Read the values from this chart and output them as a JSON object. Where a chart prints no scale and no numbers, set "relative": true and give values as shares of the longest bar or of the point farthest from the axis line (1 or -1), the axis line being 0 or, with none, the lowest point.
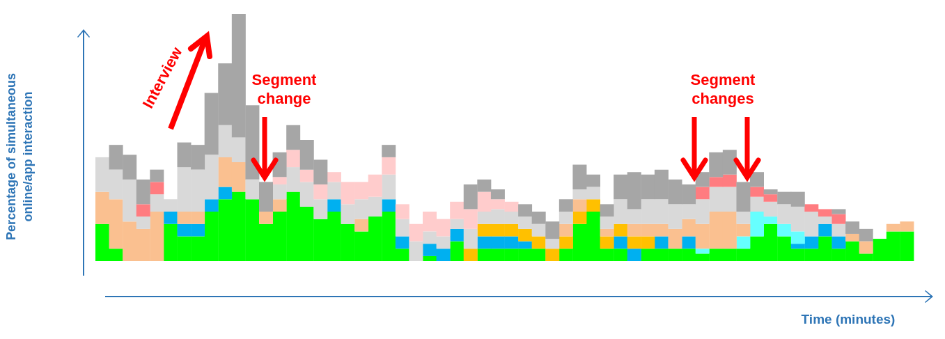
{
  "chart_data": {
    "type": "bar",
    "stacked": true,
    "relative": true,
    "grid": false,
    "legend": false,
    "xlabel": "Time (minutes)",
    "ylabel": "Percentage of simultaneous online/app interaction",
    "annotations": [
      "Interview",
      "Segment change",
      "Segment changes"
    ],
    "categories": [
      null,
      null,
      null,
      null,
      null,
      null,
      null,
      null,
      null,
      null,
      null,
      null,
      null,
      null,
      null,
      null,
      null,
      null,
      null,
      null,
      null,
      null,
      null,
      null,
      null,
      null,
      null,
      null,
      null,
      null,
      null,
      null,
      null,
      null,
      null,
      null,
      null,
      null,
      null,
      null,
      null,
      null,
      null,
      null,
      null,
      null,
      null,
      null,
      null,
      null,
      null,
      null,
      null,
      null,
      null,
      null,
      null,
      null,
      null,
      null
    ],
    "series": [
      {
        "color": "#00ff00",
        "values": [
          0.15,
          0.05,
          0,
          0,
          0,
          0.15,
          0.1,
          0.1,
          0.2,
          0.25,
          0.28,
          0.25,
          0.15,
          0.2,
          0.28,
          0.22,
          0.17,
          0.2,
          0.15,
          0.12,
          0.18,
          0.2,
          0.05,
          0,
          0.02,
          0,
          0.08,
          0,
          0.05,
          0.05,
          0.05,
          0.05,
          0.05,
          0,
          0.05,
          0.15,
          0.2,
          0.05,
          0.05,
          0,
          0.05,
          0.05,
          0.05,
          0.05,
          0.03,
          0.05,
          0.05,
          0.05,
          0.1,
          0.15,
          0.1,
          0.05,
          0.05,
          0.1,
          0.05,
          0.08,
          0.03,
          0.09,
          0.12,
          0.12
        ]
      },
      {
        "color": "#00b0f0",
        "values": [
          0,
          0,
          0,
          0,
          0,
          0.05,
          0.05,
          0.05,
          0.05,
          0.05,
          0,
          0,
          0,
          0,
          0,
          0,
          0,
          0.05,
          0,
          0,
          0,
          0.05,
          0.05,
          0,
          0.05,
          0.05,
          0.05,
          0,
          0.05,
          0.05,
          0.05,
          0.03,
          0,
          0,
          0,
          0,
          0,
          0,
          0.05,
          0.05,
          0,
          0.05,
          0,
          0.05,
          0,
          0,
          0,
          0,
          0,
          0,
          0,
          0.02,
          0.05,
          0.05,
          0.05,
          0,
          0,
          0,
          0,
          0
        ]
      },
      {
        "color": "#66ffff",
        "values": [
          0,
          0,
          0,
          0,
          0,
          0,
          0,
          0,
          0,
          0,
          0,
          0,
          0,
          0,
          0,
          0,
          0,
          0,
          0,
          0,
          0,
          0,
          0,
          0,
          0,
          0,
          0,
          0,
          0,
          0,
          0,
          0,
          0,
          0,
          0,
          0,
          0,
          0,
          0,
          0,
          0,
          0,
          0,
          0,
          0.02,
          0,
          0,
          0.05,
          0.1,
          0.03,
          0.05,
          0.05,
          0,
          0,
          0,
          0,
          0,
          0,
          0,
          0
        ]
      },
      {
        "color": "#ffc000",
        "values": [
          0,
          0,
          0,
          0,
          0,
          0,
          0,
          0,
          0,
          0,
          0,
          0,
          0,
          0,
          0,
          0,
          0,
          0,
          0,
          0,
          0,
          0,
          0,
          0,
          0,
          0,
          0,
          0.05,
          0.05,
          0.05,
          0.05,
          0.05,
          0.05,
          0.05,
          0.05,
          0.05,
          0.05,
          0.05,
          0.05,
          0.05,
          0.05,
          0,
          0,
          0,
          0,
          0,
          0,
          0,
          0,
          0,
          0,
          0,
          0,
          0,
          0,
          0,
          0,
          0,
          0,
          0
        ]
      },
      {
        "color": "#fac090",
        "values": [
          0.13,
          0.2,
          0.16,
          0.13,
          0.2,
          0,
          0.05,
          0.05,
          0,
          0.12,
          0.12,
          0,
          0.05,
          0.05,
          0,
          0,
          0,
          0,
          0,
          0.05,
          0,
          0,
          0,
          0,
          0,
          0,
          0,
          0,
          0,
          0,
          0,
          0,
          0,
          0,
          0.05,
          0.05,
          0,
          0.03,
          0,
          0.05,
          0.05,
          0.05,
          0.08,
          0.07,
          0.1,
          0.15,
          0.15,
          0.05,
          0,
          0,
          0,
          0,
          0,
          0,
          0,
          0.03,
          0.05,
          0,
          0.03,
          0.04
        ]
      },
      {
        "color": "#d9d9d9",
        "values": [
          0.14,
          0.12,
          0.17,
          0.05,
          0.07,
          0.05,
          0.18,
          0.17,
          0.18,
          0.13,
          0.1,
          0.08,
          0,
          0.06,
          0.1,
          0.1,
          0.08,
          0.07,
          0.08,
          0.08,
          0.08,
          0.1,
          0.07,
          0.08,
          0.05,
          0.05,
          0.04,
          0.08,
          0.05,
          0.06,
          0.05,
          0.05,
          0.05,
          0.04,
          0.05,
          0.04,
          0.05,
          0.05,
          0.1,
          0.06,
          0.1,
          0.1,
          0.1,
          0.06,
          0.1,
          0.1,
          0.1,
          0.05,
          0.06,
          0.06,
          0.08,
          0.1,
          0.1,
          0.03,
          0.05,
          0,
          0,
          0,
          0,
          0
        ]
      },
      {
        "color": "#ffcccc",
        "values": [
          0,
          0,
          0,
          0,
          0,
          0,
          0,
          0,
          0,
          0,
          0,
          0,
          0,
          0.03,
          0.07,
          0.05,
          0.06,
          0.04,
          0.09,
          0.07,
          0.09,
          0.07,
          0.06,
          0.07,
          0.08,
          0.07,
          0.07,
          0.08,
          0.08,
          0.04,
          0.04,
          0,
          0,
          0,
          0,
          0,
          0,
          0,
          0,
          0,
          0,
          0,
          0,
          0,
          0,
          0,
          0,
          0,
          0,
          0,
          0,
          0,
          0,
          0,
          0,
          0,
          0,
          0,
          0,
          0
        ]
      },
      {
        "color": "#ff7c80",
        "values": [
          0,
          0,
          0,
          0.05,
          0.05,
          0,
          0,
          0,
          0,
          0,
          0,
          0,
          0,
          0,
          0,
          0,
          0,
          0,
          0,
          0,
          0,
          0,
          0,
          0,
          0,
          0,
          0,
          0,
          0,
          0,
          0,
          0,
          0,
          0,
          0,
          0,
          0,
          0,
          0,
          0,
          0,
          0,
          0,
          0,
          0.05,
          0.04,
          0.05,
          0,
          0.04,
          0.03,
          0,
          0,
          0.03,
          0.03,
          0.04,
          0,
          0,
          0,
          0,
          0
        ]
      },
      {
        "color": "#a6a6a6",
        "values": [
          0,
          0.1,
          0.1,
          0.1,
          0.05,
          0,
          0.1,
          0.1,
          0.25,
          0.25,
          0.5,
          0.3,
          0.12,
          0.1,
          0.1,
          0.12,
          0.1,
          0,
          0,
          0,
          0,
          0.05,
          0,
          0,
          0,
          0,
          0,
          0.1,
          0.05,
          0.04,
          0,
          0.05,
          0.05,
          0.07,
          0.05,
          0.1,
          0.05,
          0.05,
          0.1,
          0.15,
          0.1,
          0.12,
          0.1,
          0.08,
          0.06,
          0.1,
          0.1,
          0.12,
          0.06,
          0.02,
          0.05,
          0.06,
          0,
          0,
          0.02,
          0.05,
          0.05,
          0,
          0,
          0
        ]
      }
    ]
  }
}
